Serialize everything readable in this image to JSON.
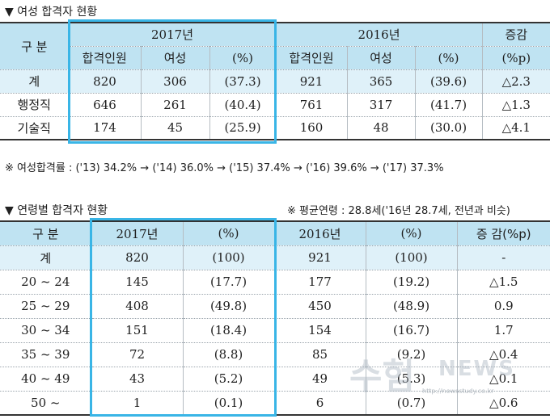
{
  "section1": {
    "title": "▼ 여성 합격자 현황",
    "header": {
      "category": "구 분",
      "year_2017": "2017년",
      "year_2016": "2016년",
      "change": "증감",
      "change_unit": "(%p)",
      "sub_2017": [
        "합격인원",
        "여성",
        "(%)"
      ],
      "sub_2016": [
        "합격인원",
        "여성",
        "(%)"
      ]
    },
    "rows": [
      {
        "label": "계",
        "c2017": [
          "820",
          "306",
          "(37.3)"
        ],
        "c2016": [
          "921",
          "365",
          "(39.6)"
        ],
        "change": "△2.3"
      },
      {
        "label": "행정직",
        "c2017": [
          "646",
          "261",
          "(40.4)"
        ],
        "c2016": [
          "761",
          "317",
          "(41.7)"
        ],
        "change": "△1.3"
      },
      {
        "label": "기술직",
        "c2017": [
          "174",
          "45",
          "(25.9)"
        ],
        "c2016": [
          "160",
          "48",
          "(30.0)"
        ],
        "change": "△4.1"
      }
    ],
    "note": "※ 여성합격률 : ('13) 34.2% → ('14) 36.0% → ('15) 37.4%  → ('16) 39.6% → ('17) 37.3%"
  },
  "section2": {
    "title": "▼ 연령별 합격자 현황",
    "avg_note": "※ 평균연령 : 28.8세('16년 28.7세, 전년과 비슷)",
    "header": [
      "구 분",
      "2017년",
      "(%)",
      "2016년",
      "(%)",
      "증 감(%p)"
    ],
    "rows": [
      [
        "계",
        "820",
        "(100)",
        "921",
        "(100)",
        "-"
      ],
      [
        "20 ~ 24",
        "145",
        "(17.7)",
        "177",
        "(19.2)",
        "△1.5"
      ],
      [
        "25 ~ 29",
        "408",
        "(49.8)",
        "450",
        "(48.9)",
        "0.9"
      ],
      [
        "30 ~ 34",
        "151",
        "(18.4)",
        "154",
        "(16.7)",
        "1.7"
      ],
      [
        "35 ~ 39",
        "72",
        "(8.8)",
        "85",
        "(9.2)",
        "△0.4"
      ],
      [
        "40 ~ 49",
        "43",
        "(5.2)",
        "49",
        "(5.3)",
        "△0.1"
      ],
      [
        "50 ~",
        "1",
        "(0.1)",
        "6",
        "(0.7)",
        "△0.6"
      ]
    ]
  },
  "watermark": {
    "main": "수험",
    "news": "NEWS",
    "url": "http://newsstudy.co.kr"
  },
  "colors": {
    "header_bg": "#bfe3f2",
    "total_row_bg": "#dff1f9",
    "highlight_border": "#39b5e6"
  }
}
